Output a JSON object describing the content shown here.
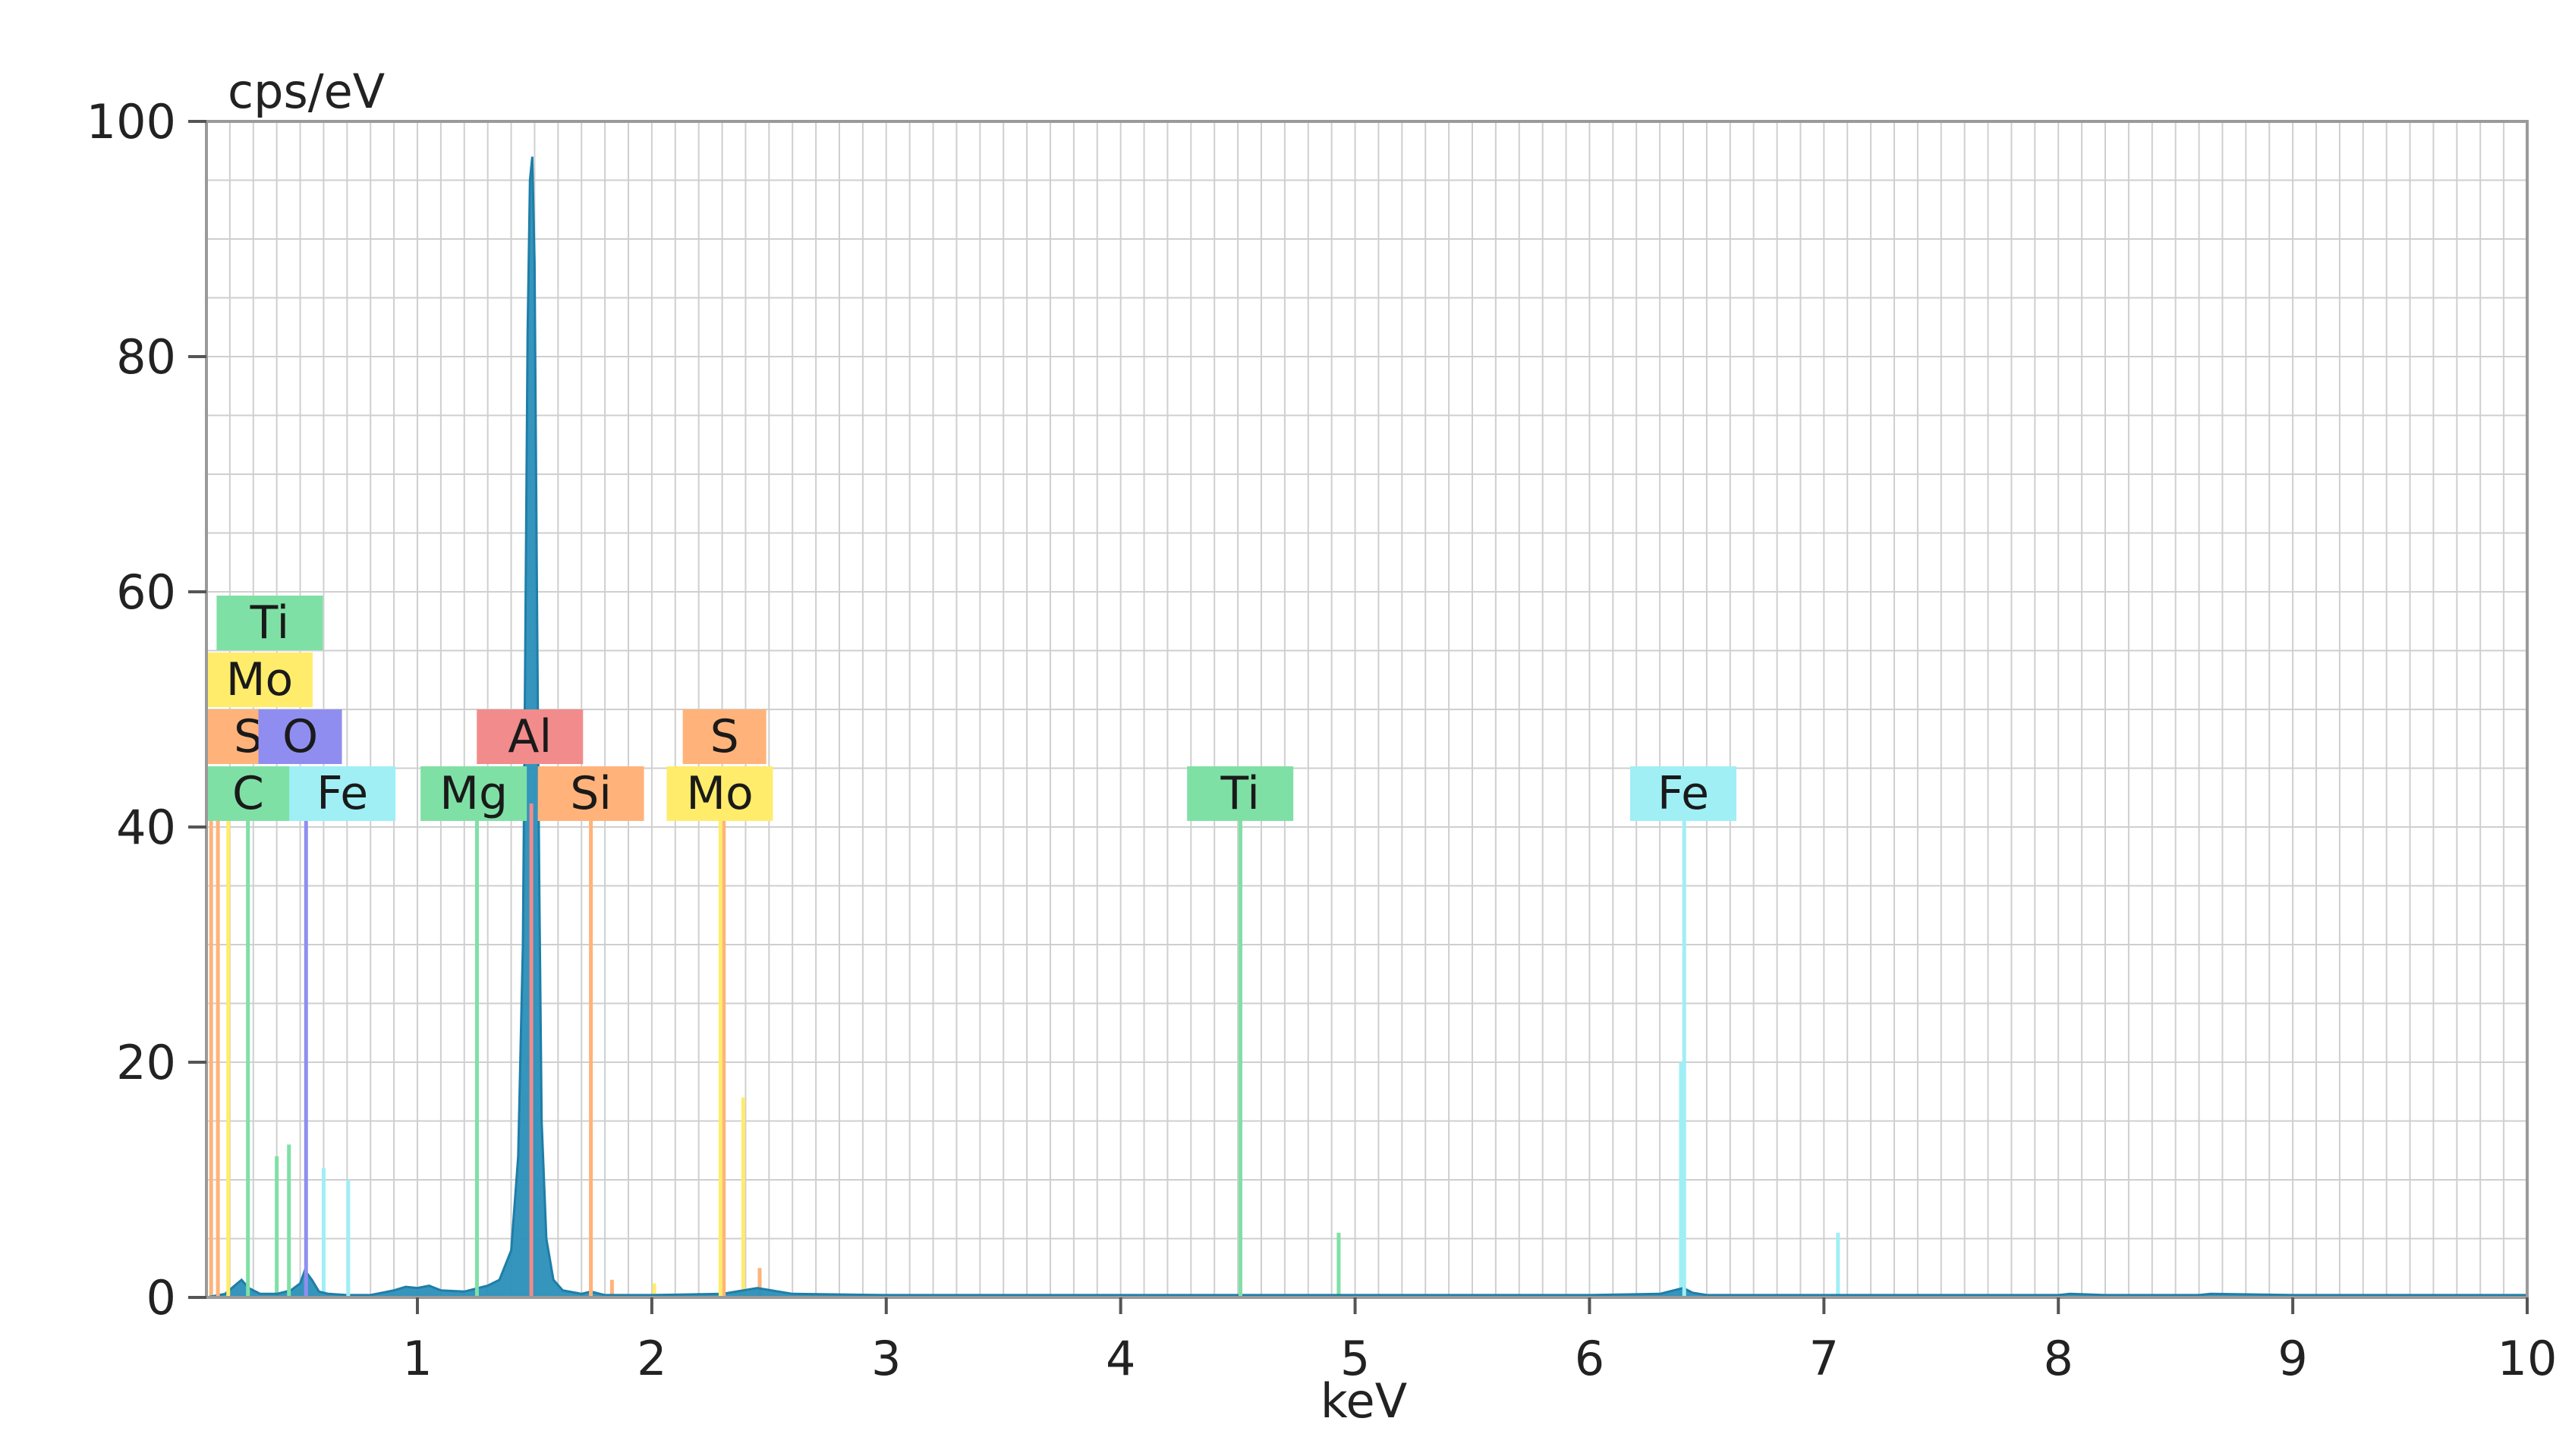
{
  "chart_data": {
    "type": "area",
    "xlabel": "keV",
    "ylabel": "cps/eV",
    "xlim": [
      0.1,
      10
    ],
    "ylim": [
      0,
      100
    ],
    "x_ticks": [
      1,
      2,
      3,
      4,
      5,
      6,
      7,
      8,
      9,
      10
    ],
    "y_ticks": [
      0,
      20,
      40,
      60,
      80,
      100
    ],
    "grid": true,
    "series": [
      {
        "color": "#2a8fb8",
        "x": [
          0.1,
          0.18,
          0.22,
          0.25,
          0.28,
          0.33,
          0.4,
          0.46,
          0.5,
          0.52,
          0.55,
          0.58,
          0.62,
          0.7,
          0.8,
          0.9,
          0.95,
          1.0,
          1.05,
          1.1,
          1.2,
          1.26,
          1.3,
          1.35,
          1.4,
          1.43,
          1.45,
          1.46,
          1.47,
          1.48,
          1.49,
          1.5,
          1.51,
          1.52,
          1.53,
          1.55,
          1.58,
          1.62,
          1.7,
          1.74,
          1.8,
          1.9,
          2.0,
          2.3,
          2.45,
          2.6,
          3.0,
          3.5,
          4.0,
          4.51,
          5.0,
          6.0,
          6.3,
          6.36,
          6.4,
          6.44,
          6.5,
          7.0,
          7.5,
          8.0,
          8.05,
          8.2,
          8.6,
          8.65,
          9.0,
          9.5,
          10.0
        ],
        "y": [
          0,
          0.3,
          1.0,
          1.5,
          0.8,
          0.3,
          0.3,
          0.6,
          1.2,
          2.3,
          1.5,
          0.5,
          0.3,
          0.2,
          0.2,
          0.6,
          0.9,
          0.8,
          1.0,
          0.6,
          0.5,
          0.8,
          1.0,
          1.5,
          4,
          12,
          30,
          55,
          82,
          95,
          97,
          88,
          60,
          35,
          15,
          5,
          1.5,
          0.6,
          0.3,
          0.5,
          0.2,
          0.2,
          0.2,
          0.3,
          0.8,
          0.3,
          0.2,
          0.2,
          0.2,
          0.2,
          0.2,
          0.2,
          0.3,
          0.6,
          0.8,
          0.4,
          0.2,
          0.2,
          0.2,
          0.2,
          0.3,
          0.2,
          0.2,
          0.3,
          0.2,
          0.2,
          0.2
        ]
      }
    ],
    "element_lines": [
      {
        "label": "Ti",
        "energy": 0.452,
        "height": 13,
        "color": "#7fe0a5",
        "tag_tier": 5,
        "tag_x": 0.37
      },
      {
        "label": "Mo",
        "energy": 0.193,
        "height": 42,
        "color": "#ffec6b",
        "tag_tier": 4,
        "tag_x": 0.22
      },
      {
        "label": "S",
        "energy": 0.149,
        "height": 42,
        "color": "#ffb37a",
        "tag_tier": 3,
        "tag_x": 0.13
      },
      {
        "label": "O",
        "energy": 0.525,
        "height": 42,
        "color": "#8f8ef0",
        "tag_tier": 3,
        "tag_x": 0.5
      },
      {
        "label": "Al",
        "energy": 1.486,
        "height": 42,
        "color": "#f28b8b",
        "tag_tier": 3,
        "tag_x": 1.48
      },
      {
        "label": "S",
        "energy": 2.307,
        "height": 42,
        "color": "#ffb37a",
        "tag_tier": 3,
        "tag_x": 2.31
      },
      {
        "label": "C",
        "energy": 0.277,
        "height": 42,
        "color": "#7fe0a5",
        "tag_tier": 2,
        "tag_x": 0.27
      },
      {
        "label": "Fe",
        "energy": 0.705,
        "height": 10,
        "color": "#9feff5",
        "tag_tier": 2,
        "tag_x": 0.68
      },
      {
        "label": "Mg",
        "energy": 1.254,
        "height": 42,
        "color": "#7fe0a5",
        "tag_tier": 2,
        "tag_x": 1.24
      },
      {
        "label": "Si",
        "energy": 1.74,
        "height": 42,
        "color": "#ffb37a",
        "tag_tier": 2,
        "tag_x": 1.74
      },
      {
        "label": "Mo",
        "energy": 2.293,
        "height": 42,
        "color": "#ffec6b",
        "tag_tier": 2,
        "tag_x": 2.29
      },
      {
        "label": "Ti",
        "energy": 4.511,
        "height": 42,
        "color": "#7fe0a5",
        "tag_tier": 2,
        "tag_x": 4.51
      },
      {
        "label": "Fe",
        "energy": 6.404,
        "height": 42,
        "color": "#9feff5",
        "tag_tier": 2,
        "tag_x": 6.4
      }
    ],
    "minor_lines": [
      {
        "energy": 0.4,
        "height": 12,
        "color": "#7fe0a5"
      },
      {
        "energy": 0.6,
        "height": 11,
        "color": "#9feff5"
      },
      {
        "energy": 0.12,
        "height": 41,
        "color": "#ffb37a"
      },
      {
        "energy": 1.83,
        "height": 1.5,
        "color": "#ffb37a"
      },
      {
        "energy": 2.01,
        "height": 1.2,
        "color": "#ffec6b"
      },
      {
        "energy": 2.39,
        "height": 17,
        "color": "#ffec6b"
      },
      {
        "energy": 2.46,
        "height": 2.5,
        "color": "#ffb37a"
      },
      {
        "energy": 4.93,
        "height": 5.5,
        "color": "#7fe0a5"
      },
      {
        "energy": 6.39,
        "height": 20,
        "color": "#9feff5"
      },
      {
        "energy": 7.06,
        "height": 5.5,
        "color": "#9feff5"
      }
    ]
  }
}
